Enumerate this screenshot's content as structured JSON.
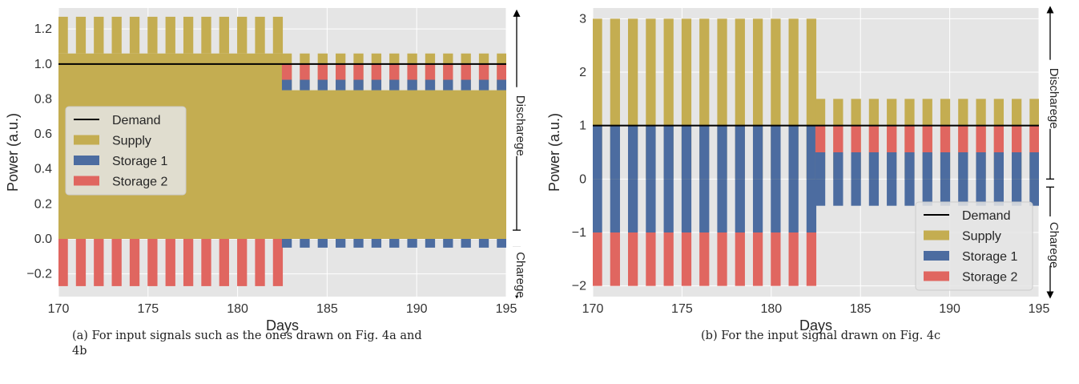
{
  "colors": {
    "supply": "#c4ad51",
    "storage1": "#4c6ca0",
    "storage2": "#e06660",
    "demand": "#000000",
    "plot_bg": "#e5e5e5",
    "grid": "#ffffff"
  },
  "icons": {
    "discharge_arrow": "double-headed-arrow-icon",
    "charge_arrow": "double-headed-arrow-icon"
  },
  "chart_data": [
    {
      "type": "bar",
      "xlabel": "Days",
      "ylabel": "Power (a.u.)",
      "xlim": [
        170,
        195
      ],
      "ylim": [
        -0.33,
        1.32
      ],
      "xticks": [
        170,
        175,
        180,
        185,
        190,
        195
      ],
      "xtick_labels": [
        "170",
        "175",
        "180",
        "185",
        "190",
        "195"
      ],
      "yticks": [
        -0.2,
        0.0,
        0.2,
        0.4,
        0.6,
        0.8,
        1.0,
        1.2
      ],
      "ytick_labels": [
        "−0.2",
        "0.0",
        "0.2",
        "0.4",
        "0.6",
        "0.8",
        "1.0",
        "1.2"
      ],
      "grid": true,
      "legend_position": "center-left",
      "legend": [
        "Demand",
        "Supply",
        "Storage 1",
        "Storage 2"
      ],
      "demand": 1.0,
      "phases": [
        {
          "x_start": 170.0,
          "x_end": 182.5,
          "supply_bar_top": 1.27,
          "supply_base_level": 1.06,
          "storage2_charge": -0.27,
          "storage1_charge": 0,
          "storage1_discharge": 0,
          "storage2_discharge": 0
        },
        {
          "x_start": 182.5,
          "x_end": 195.0,
          "supply_bar_top": 1.06,
          "supply_base_level": 0.85,
          "storage2_charge": 0,
          "storage1_charge": -0.05,
          "storage1_discharge": 0.06,
          "storage2_discharge": 0.09
        }
      ],
      "side_labels": [
        {
          "text": "Discharege",
          "from": 0.05,
          "to": 1.3
        },
        {
          "text": "Charege",
          "from": -0.33,
          "to": 0.0
        }
      ],
      "caption": [
        "(a) For input signals such as the ones drawn on Fig. 4a and",
        "4b"
      ]
    },
    {
      "type": "bar",
      "xlabel": "Days",
      "ylabel": "Power (a.u.)",
      "xlim": [
        170,
        195
      ],
      "ylim": [
        -2.2,
        3.2
      ],
      "xticks": [
        170,
        175,
        180,
        185,
        190,
        195
      ],
      "xtick_labels": [
        "170",
        "175",
        "180",
        "185",
        "190",
        "195"
      ],
      "yticks": [
        -2,
        -1,
        0,
        1,
        2,
        3
      ],
      "ytick_labels": [
        "−2",
        "−1",
        "0",
        "1",
        "2",
        "3"
      ],
      "grid": true,
      "legend_position": "lower-right",
      "legend": [
        "Demand",
        "Supply",
        "Storage 1",
        "Storage 2"
      ],
      "demand": 1.0,
      "phases": [
        {
          "x_start": 170.0,
          "x_end": 182.5,
          "supply": 3.0,
          "storage1_discharge": 1.0,
          "storage2_discharge": 0,
          "storage1_charge": -1.0,
          "storage2_charge": -2.0
        },
        {
          "x_start": 182.5,
          "x_end": 195.0,
          "supply": 1.5,
          "storage1_discharge": 0.5,
          "storage2_discharge": 1.0,
          "storage1_charge": -0.5,
          "storage2_charge": 0
        }
      ],
      "side_labels": [
        {
          "text": "Discharege",
          "from": 0.0,
          "to": 3.2
        },
        {
          "text": "Charege",
          "from": -2.2,
          "to": 0.0
        }
      ],
      "caption": [
        "(b) For the input signal drawn on Fig. 4c"
      ]
    }
  ]
}
